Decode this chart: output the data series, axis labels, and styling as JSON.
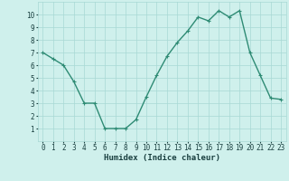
{
  "x": [
    0,
    1,
    2,
    3,
    4,
    5,
    6,
    7,
    8,
    9,
    10,
    11,
    12,
    13,
    14,
    15,
    16,
    17,
    18,
    19,
    20,
    21,
    22,
    23
  ],
  "y": [
    7.0,
    6.5,
    6.0,
    4.7,
    3.0,
    3.0,
    1.0,
    1.0,
    1.0,
    1.7,
    3.5,
    5.2,
    6.7,
    7.8,
    8.7,
    9.8,
    9.5,
    10.3,
    9.8,
    10.3,
    7.0,
    5.2,
    3.4,
    3.3
  ],
  "line_color": "#2e8b74",
  "marker": "+",
  "marker_size": 3,
  "marker_linewidth": 0.8,
  "bg_color": "#cff0ec",
  "grid_color": "#a8d8d4",
  "xlabel": "Humidex (Indice chaleur)",
  "xlim": [
    -0.5,
    23.5
  ],
  "ylim": [
    0,
    11
  ],
  "xticks": [
    0,
    1,
    2,
    3,
    4,
    5,
    6,
    7,
    8,
    9,
    10,
    11,
    12,
    13,
    14,
    15,
    16,
    17,
    18,
    19,
    20,
    21,
    22,
    23
  ],
  "yticks": [
    1,
    2,
    3,
    4,
    5,
    6,
    7,
    8,
    9,
    10
  ],
  "tick_color": "#1a4040",
  "label_fontsize": 6.5,
  "tick_fontsize": 5.5,
  "linewidth": 1.0
}
